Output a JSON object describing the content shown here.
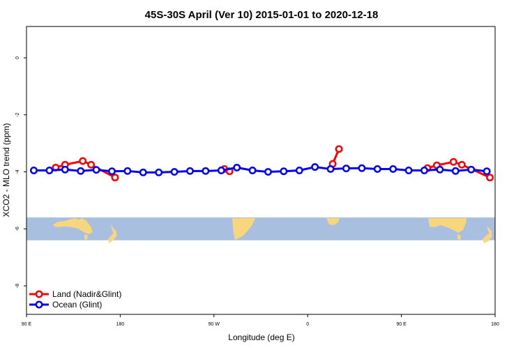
{
  "chart_data": {
    "type": "line",
    "title": "45S-30S April (Ver 10)   2015-01-01 to 2020-12-18",
    "xlabel": "Longitude (deg E)",
    "ylabel": "XCO2 - MLO trend (ppm)",
    "xlim": [
      90,
      540
    ],
    "ylim": [
      -9,
      1.1
    ],
    "x_ticks": [
      {
        "value": 90,
        "label": "90 E"
      },
      {
        "value": 180,
        "label": "180"
      },
      {
        "value": 270,
        "label": "90 W"
      },
      {
        "value": 360,
        "label": "0"
      },
      {
        "value": 450,
        "label": "90 E"
      },
      {
        "value": 540,
        "label": "180"
      }
    ],
    "y_ticks": [
      {
        "value": 0,
        "label": "0"
      },
      {
        "value": -2,
        "label": "-2"
      },
      {
        "value": -4,
        "label": "-4"
      },
      {
        "value": -6,
        "label": "-6"
      },
      {
        "value": -8,
        "label": "-8"
      }
    ],
    "map_strip": {
      "ymin": -6.4,
      "ymax": -5.6,
      "ocean_color": "#a9bfdf",
      "land_color": "#f7d67e"
    },
    "legend_position": "bottom-left",
    "series": [
      {
        "name": "Land (Nadir&Glint)",
        "color": "#ff0000",
        "segments": [
          {
            "x": [
              118,
              127,
              144,
              152,
              175
            ],
            "y": [
              -3.85,
              -3.75,
              -3.62,
              -3.75,
              -4.2
            ]
          },
          {
            "x": [
              280,
              285
            ],
            "y": [
              -3.9,
              -3.98
            ]
          },
          {
            "x": [
              384,
              390
            ],
            "y": [
              -3.72,
              -3.2
            ]
          },
          {
            "x": [
              475,
              484,
              500,
              508,
              535
            ],
            "y": [
              -3.87,
              -3.77,
              -3.65,
              -3.75,
              -4.2
            ]
          }
        ]
      },
      {
        "name": "Ocean (Glint)",
        "color": "#0000ff",
        "segments": [
          {
            "x": [
              97,
              112,
              127,
              142,
              157,
              172,
              187,
              202,
              217,
              232,
              247,
              262,
              277,
              292,
              307,
              322,
              337,
              352,
              367,
              382,
              397,
              412,
              427,
              442,
              457,
              472,
              487,
              502,
              517,
              532
            ],
            "y": [
              -3.95,
              -3.95,
              -3.92,
              -3.97,
              -3.93,
              -3.98,
              -3.97,
              -4.02,
              -4.02,
              -4.0,
              -3.97,
              -3.97,
              -3.95,
              -3.85,
              -3.95,
              -4.0,
              -3.98,
              -3.95,
              -3.83,
              -3.9,
              -3.88,
              -3.87,
              -3.9,
              -3.9,
              -3.95,
              -3.95,
              -3.92,
              -3.97,
              -3.92,
              -3.98
            ]
          }
        ]
      }
    ]
  }
}
